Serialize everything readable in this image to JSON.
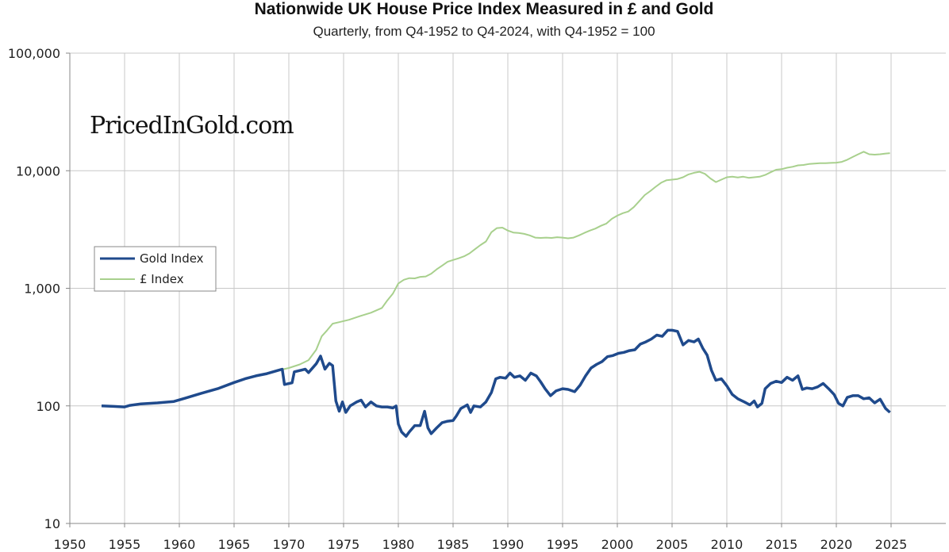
{
  "chart_data": {
    "type": "line",
    "title": "Nationwide UK House Price Index Measured in £ and Gold",
    "subtitle": "Quarterly, from Q4-1952 to Q4-2024, with Q4-1952 = 100",
    "y_scale": "log",
    "ylim": [
      10,
      100000
    ],
    "y_ticks": [
      10,
      100,
      1000,
      10000,
      100000
    ],
    "y_tick_labels": [
      "10",
      "100",
      "1,000",
      "10,000",
      "100,000"
    ],
    "xlim": [
      1950,
      2030
    ],
    "x_ticks": [
      1950,
      1955,
      1960,
      1965,
      1970,
      1975,
      1980,
      1985,
      1990,
      1995,
      2000,
      2005,
      2010,
      2015,
      2020,
      2025
    ],
    "x_tick_labels": [
      "1950",
      "1955",
      "1960",
      "1965",
      "1970",
      "1975",
      "1980",
      "1985",
      "1990",
      "1995",
      "2000",
      "2005",
      "2010",
      "2015",
      "2020",
      "2025"
    ],
    "grid": true,
    "legend_position": "center-left",
    "watermark": "PricedInGold.com",
    "series": [
      {
        "name": "Gold Index",
        "color": "#1f4a8c",
        "points": [
          [
            1952.9,
            100
          ],
          [
            1954.0,
            99
          ],
          [
            1955.0,
            98
          ],
          [
            1955.5,
            101
          ],
          [
            1956.5,
            104
          ],
          [
            1958.0,
            106
          ],
          [
            1959.5,
            109
          ],
          [
            1960.5,
            116
          ],
          [
            1962.0,
            128
          ],
          [
            1963.5,
            140
          ],
          [
            1965.0,
            158
          ],
          [
            1966.0,
            170
          ],
          [
            1967.0,
            180
          ],
          [
            1968.0,
            188
          ],
          [
            1969.0,
            200
          ],
          [
            1969.4,
            205
          ],
          [
            1969.6,
            152
          ],
          [
            1970.3,
            157
          ],
          [
            1970.5,
            195
          ],
          [
            1971.5,
            205
          ],
          [
            1971.8,
            192
          ],
          [
            1972.5,
            228
          ],
          [
            1972.9,
            265
          ],
          [
            1973.3,
            205
          ],
          [
            1973.7,
            230
          ],
          [
            1974.0,
            220
          ],
          [
            1974.3,
            110
          ],
          [
            1974.6,
            90
          ],
          [
            1974.9,
            108
          ],
          [
            1975.2,
            88
          ],
          [
            1975.6,
            100
          ],
          [
            1976.2,
            108
          ],
          [
            1976.6,
            112
          ],
          [
            1977.0,
            98
          ],
          [
            1977.5,
            108
          ],
          [
            1978.0,
            100
          ],
          [
            1978.5,
            98
          ],
          [
            1979.0,
            98
          ],
          [
            1979.5,
            96
          ],
          [
            1979.8,
            100
          ],
          [
            1980.0,
            70
          ],
          [
            1980.3,
            60
          ],
          [
            1980.7,
            55
          ],
          [
            1981.0,
            60
          ],
          [
            1981.5,
            68
          ],
          [
            1982.0,
            68
          ],
          [
            1982.4,
            90
          ],
          [
            1982.7,
            65
          ],
          [
            1983.0,
            58
          ],
          [
            1983.5,
            65
          ],
          [
            1984.0,
            72
          ],
          [
            1984.5,
            74
          ],
          [
            1985.0,
            75
          ],
          [
            1985.3,
            82
          ],
          [
            1985.7,
            95
          ],
          [
            1986.3,
            102
          ],
          [
            1986.6,
            88
          ],
          [
            1986.9,
            100
          ],
          [
            1987.5,
            98
          ],
          [
            1988.0,
            108
          ],
          [
            1988.5,
            130
          ],
          [
            1988.9,
            170
          ],
          [
            1989.3,
            175
          ],
          [
            1989.8,
            172
          ],
          [
            1990.2,
            190
          ],
          [
            1990.6,
            175
          ],
          [
            1991.1,
            180
          ],
          [
            1991.6,
            165
          ],
          [
            1992.1,
            190
          ],
          [
            1992.6,
            180
          ],
          [
            1993.0,
            160
          ],
          [
            1993.4,
            140
          ],
          [
            1993.9,
            122
          ],
          [
            1994.4,
            134
          ],
          [
            1995.0,
            140
          ],
          [
            1995.5,
            138
          ],
          [
            1996.1,
            132
          ],
          [
            1996.6,
            150
          ],
          [
            1997.1,
            180
          ],
          [
            1997.6,
            210
          ],
          [
            1998.1,
            225
          ],
          [
            1998.6,
            238
          ],
          [
            1999.1,
            262
          ],
          [
            1999.6,
            268
          ],
          [
            2000.1,
            280
          ],
          [
            2000.6,
            285
          ],
          [
            2001.1,
            295
          ],
          [
            2001.6,
            300
          ],
          [
            2002.1,
            335
          ],
          [
            2002.6,
            350
          ],
          [
            2003.1,
            370
          ],
          [
            2003.6,
            400
          ],
          [
            2004.1,
            390
          ],
          [
            2004.6,
            440
          ],
          [
            2005.0,
            440
          ],
          [
            2005.5,
            430
          ],
          [
            2006.0,
            330
          ],
          [
            2006.5,
            360
          ],
          [
            2007.0,
            350
          ],
          [
            2007.4,
            370
          ],
          [
            2007.8,
            310
          ],
          [
            2008.2,
            270
          ],
          [
            2008.6,
            200
          ],
          [
            2009.0,
            165
          ],
          [
            2009.5,
            170
          ],
          [
            2010.0,
            148
          ],
          [
            2010.5,
            125
          ],
          [
            2011.0,
            115
          ],
          [
            2011.6,
            108
          ],
          [
            2012.1,
            102
          ],
          [
            2012.5,
            110
          ],
          [
            2012.8,
            98
          ],
          [
            2013.2,
            105
          ],
          [
            2013.5,
            140
          ],
          [
            2014.0,
            155
          ],
          [
            2014.5,
            162
          ],
          [
            2015.0,
            158
          ],
          [
            2015.5,
            175
          ],
          [
            2016.0,
            165
          ],
          [
            2016.5,
            180
          ],
          [
            2016.9,
            138
          ],
          [
            2017.3,
            142
          ],
          [
            2017.8,
            140
          ],
          [
            2018.3,
            145
          ],
          [
            2018.8,
            155
          ],
          [
            2019.3,
            140
          ],
          [
            2019.8,
            125
          ],
          [
            2020.2,
            105
          ],
          [
            2020.6,
            100
          ],
          [
            2021.0,
            118
          ],
          [
            2021.5,
            122
          ],
          [
            2022.0,
            122
          ],
          [
            2022.5,
            115
          ],
          [
            2023.0,
            117
          ],
          [
            2023.5,
            106
          ],
          [
            2024.0,
            114
          ],
          [
            2024.5,
            95
          ],
          [
            2024.9,
            88
          ]
        ]
      },
      {
        "name": "£ Index",
        "color": "#a8d08d",
        "points": [
          [
            1952.9,
            100
          ],
          [
            1954.0,
            99
          ],
          [
            1955.0,
            98
          ],
          [
            1955.5,
            101
          ],
          [
            1956.5,
            104
          ],
          [
            1958.0,
            106
          ],
          [
            1959.5,
            109
          ],
          [
            1960.5,
            116
          ],
          [
            1962.0,
            128
          ],
          [
            1963.5,
            140
          ],
          [
            1965.0,
            158
          ],
          [
            1966.0,
            170
          ],
          [
            1967.0,
            180
          ],
          [
            1968.0,
            188
          ],
          [
            1969.0,
            200
          ],
          [
            1970.0,
            210
          ],
          [
            1971.0,
            225
          ],
          [
            1971.8,
            245
          ],
          [
            1972.5,
            300
          ],
          [
            1973.0,
            390
          ],
          [
            1973.5,
            440
          ],
          [
            1974.0,
            500
          ],
          [
            1974.6,
            515
          ],
          [
            1975.5,
            540
          ],
          [
            1976.5,
            580
          ],
          [
            1977.5,
            620
          ],
          [
            1978.5,
            680
          ],
          [
            1979.0,
            790
          ],
          [
            1979.5,
            900
          ],
          [
            1980.0,
            1100
          ],
          [
            1980.5,
            1180
          ],
          [
            1981.0,
            1220
          ],
          [
            1981.5,
            1215
          ],
          [
            1982.0,
            1250
          ],
          [
            1982.5,
            1260
          ],
          [
            1983.0,
            1330
          ],
          [
            1983.5,
            1450
          ],
          [
            1984.0,
            1560
          ],
          [
            1984.5,
            1680
          ],
          [
            1985.0,
            1740
          ],
          [
            1985.5,
            1800
          ],
          [
            1986.0,
            1870
          ],
          [
            1986.5,
            1980
          ],
          [
            1987.0,
            2150
          ],
          [
            1987.5,
            2330
          ],
          [
            1988.0,
            2500
          ],
          [
            1988.5,
            3000
          ],
          [
            1989.0,
            3250
          ],
          [
            1989.5,
            3280
          ],
          [
            1990.0,
            3100
          ],
          [
            1990.5,
            2980
          ],
          [
            1991.0,
            2950
          ],
          [
            1991.5,
            2900
          ],
          [
            1992.0,
            2820
          ],
          [
            1992.5,
            2700
          ],
          [
            1993.0,
            2680
          ],
          [
            1993.5,
            2700
          ],
          [
            1994.0,
            2680
          ],
          [
            1994.5,
            2720
          ],
          [
            1995.0,
            2700
          ],
          [
            1995.5,
            2660
          ],
          [
            1996.0,
            2700
          ],
          [
            1996.5,
            2820
          ],
          [
            1997.0,
            2960
          ],
          [
            1997.5,
            3100
          ],
          [
            1998.0,
            3220
          ],
          [
            1998.5,
            3400
          ],
          [
            1999.0,
            3550
          ],
          [
            1999.5,
            3900
          ],
          [
            2000.0,
            4150
          ],
          [
            2000.5,
            4350
          ],
          [
            2001.0,
            4500
          ],
          [
            2001.5,
            4900
          ],
          [
            2002.0,
            5500
          ],
          [
            2002.5,
            6200
          ],
          [
            2003.0,
            6700
          ],
          [
            2003.5,
            7300
          ],
          [
            2004.0,
            7900
          ],
          [
            2004.5,
            8300
          ],
          [
            2005.0,
            8400
          ],
          [
            2005.5,
            8500
          ],
          [
            2006.0,
            8800
          ],
          [
            2006.5,
            9300
          ],
          [
            2007.0,
            9600
          ],
          [
            2007.5,
            9800
          ],
          [
            2008.0,
            9400
          ],
          [
            2008.5,
            8600
          ],
          [
            2009.0,
            8000
          ],
          [
            2009.5,
            8400
          ],
          [
            2010.0,
            8800
          ],
          [
            2010.5,
            8900
          ],
          [
            2011.0,
            8750
          ],
          [
            2011.5,
            8900
          ],
          [
            2012.0,
            8700
          ],
          [
            2012.5,
            8800
          ],
          [
            2013.0,
            8900
          ],
          [
            2013.5,
            9200
          ],
          [
            2014.0,
            9700
          ],
          [
            2014.5,
            10200
          ],
          [
            2015.0,
            10300
          ],
          [
            2015.5,
            10600
          ],
          [
            2016.0,
            10800
          ],
          [
            2016.5,
            11100
          ],
          [
            2017.0,
            11200
          ],
          [
            2017.5,
            11400
          ],
          [
            2018.0,
            11500
          ],
          [
            2018.5,
            11600
          ],
          [
            2019.0,
            11600
          ],
          [
            2019.5,
            11650
          ],
          [
            2020.0,
            11700
          ],
          [
            2020.5,
            11900
          ],
          [
            2021.0,
            12400
          ],
          [
            2021.5,
            13100
          ],
          [
            2022.0,
            13800
          ],
          [
            2022.5,
            14500
          ],
          [
            2023.0,
            13800
          ],
          [
            2023.5,
            13700
          ],
          [
            2024.0,
            13800
          ],
          [
            2024.5,
            14000
          ],
          [
            2024.9,
            14100
          ]
        ]
      }
    ]
  }
}
